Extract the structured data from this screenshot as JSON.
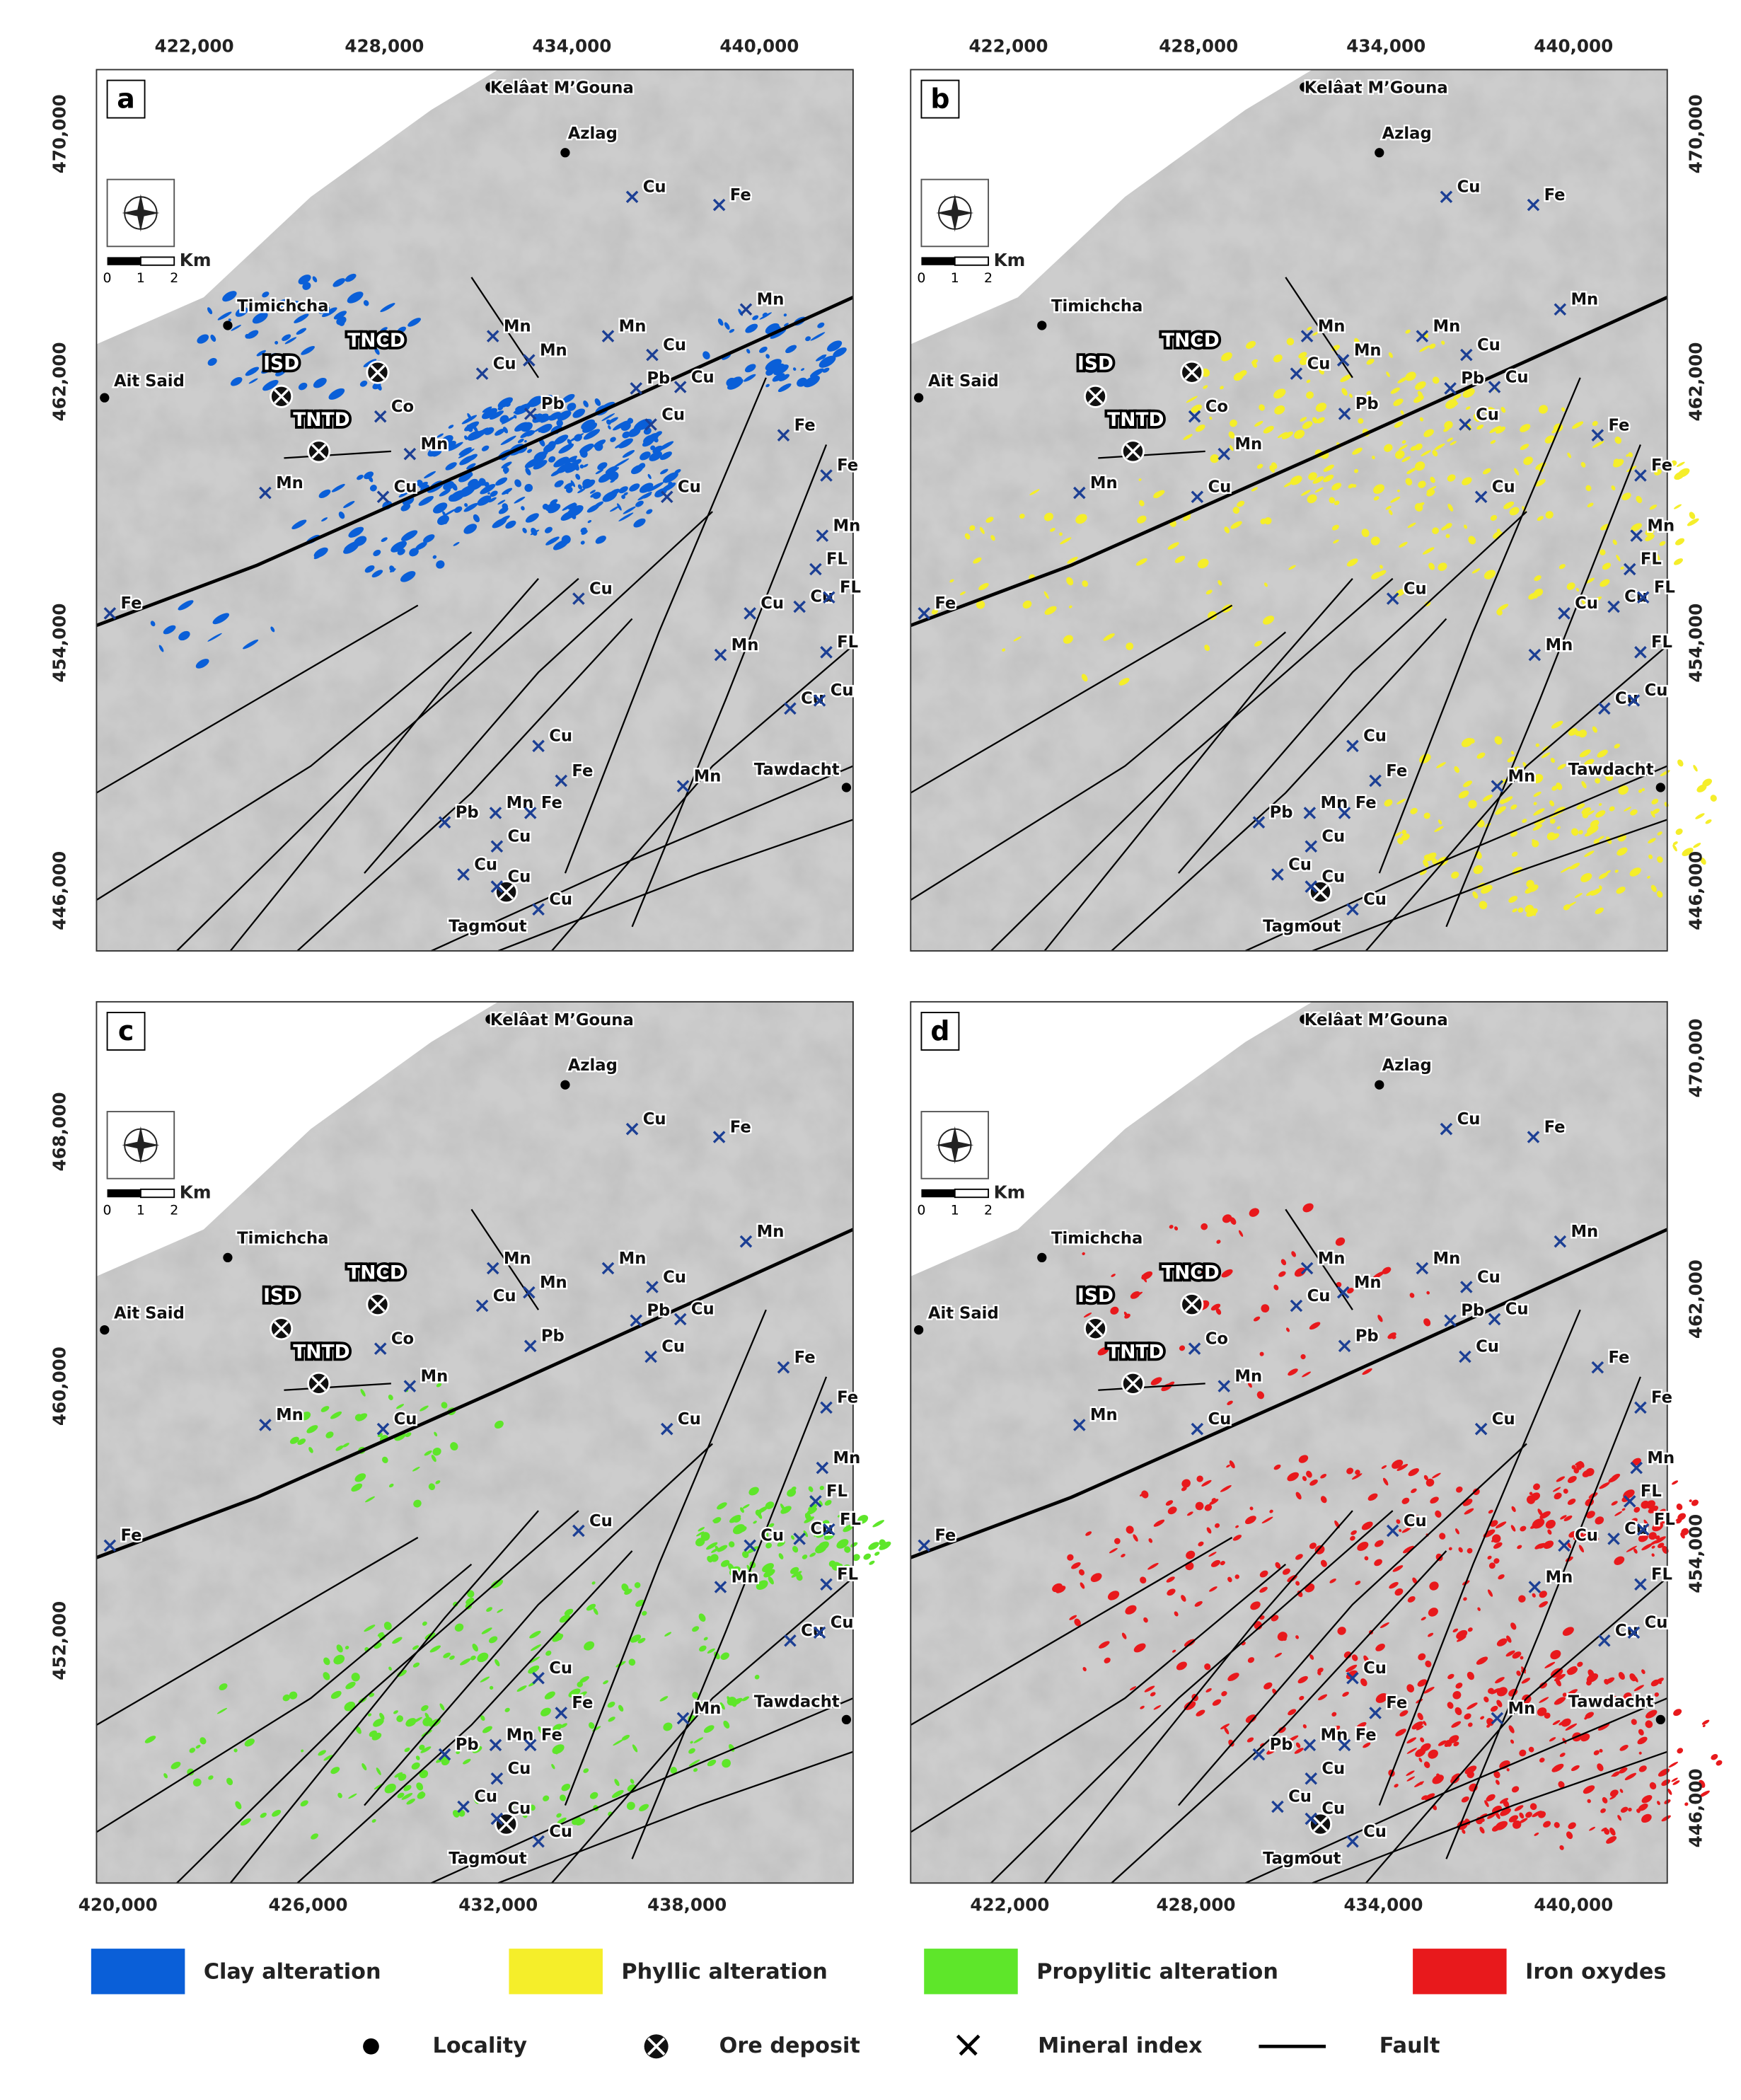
{
  "panels": [
    {
      "letter": "a",
      "x_ticks": [
        "422,000",
        "428,000",
        "434,000",
        "440,000"
      ],
      "y_ticks": [
        "470,000",
        "462,000",
        "454,000",
        "446,000"
      ]
    },
    {
      "letter": "b",
      "x_ticks": [
        "422,000",
        "428,000",
        "434,000",
        "440,000"
      ],
      "y_ticks": [
        "470,000",
        "462,000",
        "454,000",
        "446,000"
      ]
    },
    {
      "letter": "c",
      "x_ticks": [
        "420,000",
        "426,000",
        "432,000",
        "438,000"
      ],
      "y_ticks": [
        "468,000",
        "460,000",
        "452,000"
      ]
    },
    {
      "letter": "d",
      "x_ticks": [
        "422,000",
        "428,000",
        "434,000",
        "440,000"
      ],
      "y_ticks": [
        "470,000",
        "462,000",
        "454,000",
        "446,000"
      ]
    }
  ],
  "places": {
    "localities": [
      "Kelâat M’Gouna",
      "Azlag",
      "Timichcha",
      "Ait Said",
      "Tawdacht",
      "Tagmout"
    ],
    "deposits": [
      "ISD",
      "TNCD",
      "TNTD"
    ],
    "mineral_indices": [
      "Cu",
      "Fe",
      "Mn",
      "Mn",
      "Mn",
      "Cu",
      "Mn",
      "Cu",
      "Cu",
      "Pb",
      "Co",
      "Pb",
      "Cu",
      "Fe",
      "Mn",
      "Cu",
      "Mn",
      "Cu",
      "Fe",
      "Mn",
      "FL",
      "Cu",
      "Cu",
      "Cu",
      "FL",
      "Fe",
      "Mn",
      "FL",
      "Cu",
      "Cu",
      "Cu",
      "Fe",
      "Mn",
      "Pb",
      "Mn",
      "Fe",
      "Cu",
      "Cu",
      "Cu",
      "Cu"
    ],
    "scale_unit": "Km",
    "scale_ticks": [
      "0",
      "1",
      "2"
    ]
  },
  "legend": {
    "alterations": [
      {
        "label": "Clay alteration",
        "color": "#0a5fd8"
      },
      {
        "label": "Phyllic alteration",
        "color": "#f5ee2a"
      },
      {
        "label": "Propylitic alteration",
        "color": "#5ee62a"
      },
      {
        "label": "Iron oxydes",
        "color": "#e8191c"
      }
    ],
    "symbols": [
      "Locality",
      "Ore deposit",
      "Mineral index",
      "Fault"
    ]
  }
}
